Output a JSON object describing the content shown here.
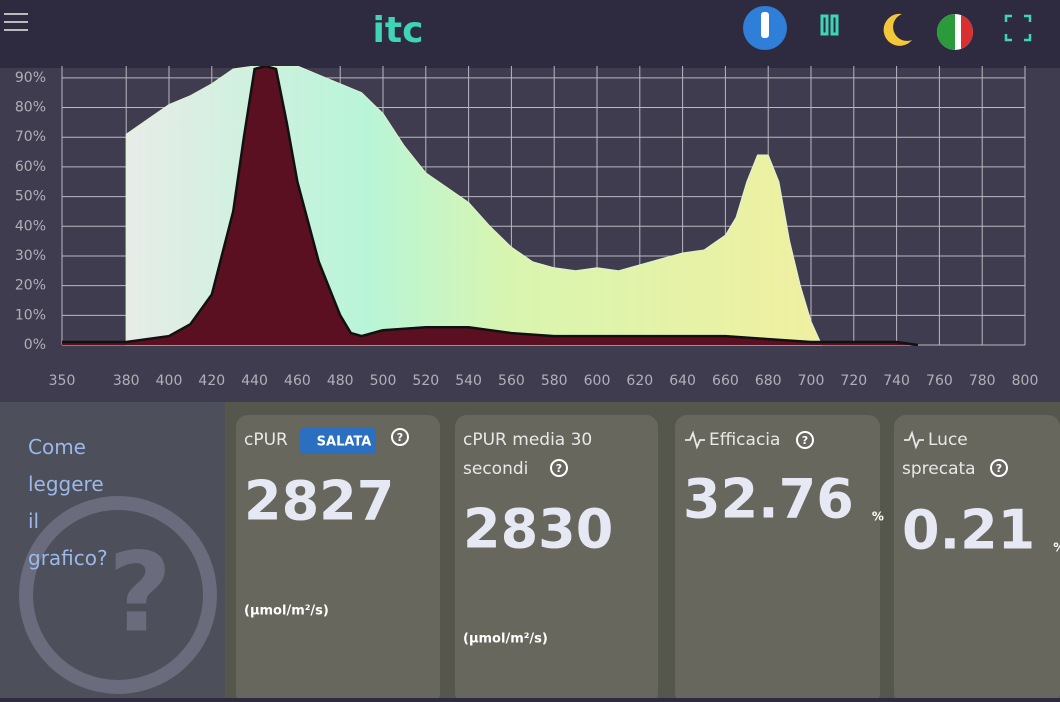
{
  "header": {
    "logo": "itc"
  },
  "chart_data": {
    "type": "area",
    "xlim": [
      350,
      800
    ],
    "xticks": [
      350,
      380,
      400,
      420,
      440,
      460,
      480,
      500,
      520,
      540,
      560,
      580,
      600,
      620,
      640,
      660,
      680,
      700,
      720,
      740,
      760,
      780,
      800
    ],
    "ylim": [
      0,
      94
    ],
    "yticks": [
      {
        "value": 0,
        "label": "0%"
      },
      {
        "value": 10,
        "label": "10%"
      },
      {
        "value": 20,
        "label": "20%"
      },
      {
        "value": 30,
        "label": "30%"
      },
      {
        "value": 40,
        "label": "40%"
      },
      {
        "value": 50,
        "label": "50%"
      },
      {
        "value": 60,
        "label": "60%"
      },
      {
        "value": 70,
        "label": "70%"
      },
      {
        "value": 80,
        "label": "80%"
      },
      {
        "value": 90,
        "label": "90%"
      }
    ],
    "grid": true,
    "series": [
      {
        "color": "#dff2d0",
        "x": [
          380,
          380,
          390,
          400,
          410,
          420,
          430,
          440,
          450,
          460,
          470,
          480,
          490,
          500,
          510,
          520,
          530,
          540,
          550,
          560,
          570,
          580,
          590,
          600,
          610,
          620,
          630,
          640,
          650,
          660,
          665,
          670,
          675,
          680,
          685,
          690,
          695,
          700,
          705
        ],
        "values": [
          0,
          71,
          76,
          81,
          84,
          88,
          93,
          94,
          94,
          94,
          91,
          88,
          85,
          78,
          67,
          58,
          53,
          48,
          40,
          33,
          28,
          26,
          25,
          26,
          25,
          27,
          29,
          31,
          32,
          37,
          43,
          55,
          64,
          64,
          55,
          35,
          20,
          8,
          0
        ]
      },
      {
        "color": "#111111",
        "x": [
          350,
          380,
          400,
          410,
          420,
          430,
          435,
          440,
          445,
          450,
          455,
          460,
          470,
          480,
          485,
          490,
          500,
          520,
          540,
          560,
          580,
          600,
          620,
          640,
          660,
          680,
          700,
          720,
          740,
          750
        ],
        "values": [
          1,
          1,
          3,
          7,
          17,
          45,
          70,
          93,
          94,
          93,
          75,
          55,
          28,
          10,
          4,
          3,
          5,
          6,
          6,
          4,
          3,
          3,
          3,
          3,
          3,
          2,
          1,
          1,
          1,
          0
        ]
      }
    ]
  },
  "help": {
    "text": "Come leggere il grafico?"
  },
  "cards": [
    {
      "title": "cPUR",
      "badge": "SALATA",
      "value": 2827,
      "unit": "(µmol/m²/s)"
    },
    {
      "title": "cPUR media 30 secondi",
      "value": 2830,
      "unit": "(µmol/m²/s)"
    },
    {
      "title": "Efficacia",
      "value": 32.76,
      "unit": "%"
    },
    {
      "title": "Luce sprecata",
      "value": 0.21,
      "unit": "%"
    }
  ]
}
